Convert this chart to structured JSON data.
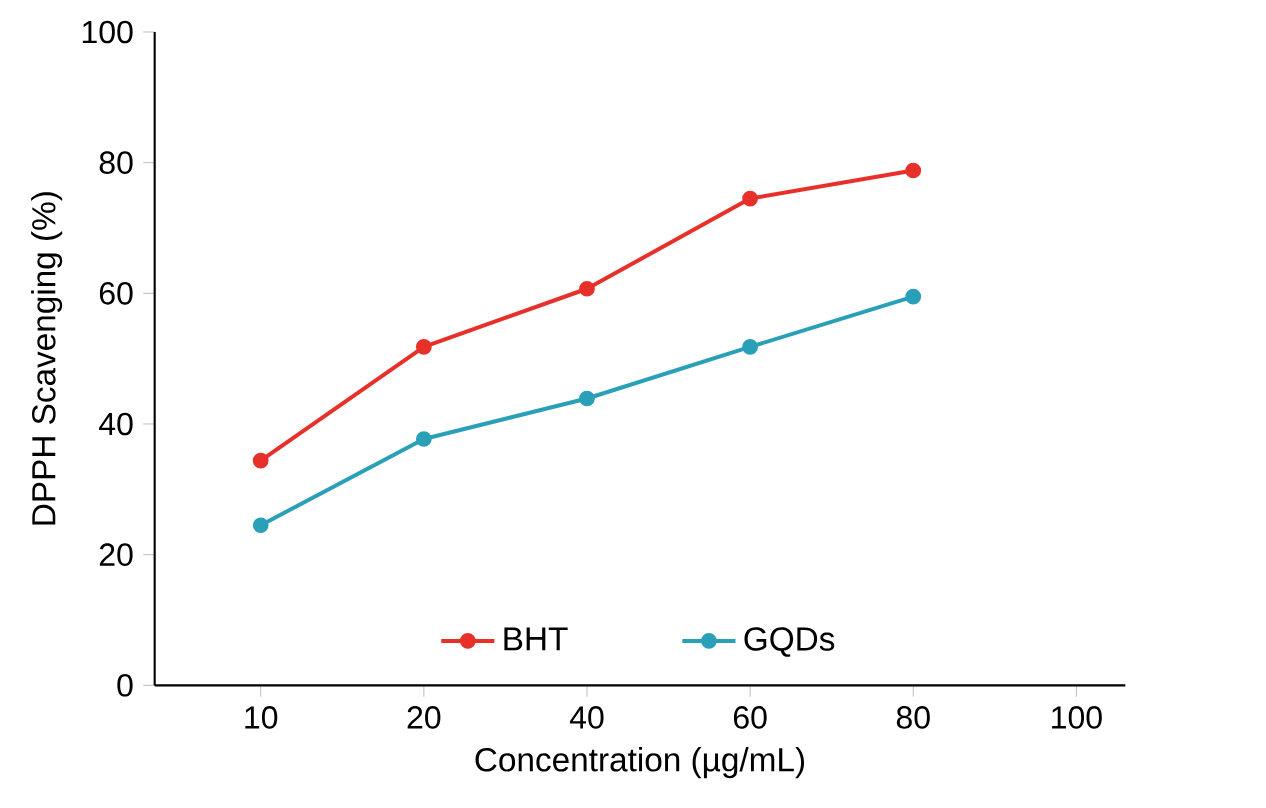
{
  "chart_data": {
    "type": "line",
    "xlabel": "Concentration (µg/mL)",
    "ylabel": "DPPH Scavenging (%)",
    "categories": [
      "10",
      "20",
      "40",
      "60",
      "80",
      "100"
    ],
    "series": [
      {
        "name": "BHT",
        "color": "#e8302a",
        "values": [
          34.4,
          51.8,
          60.7,
          74.5,
          78.8,
          null
        ]
      },
      {
        "name": "GQDs",
        "color": "#2a9fb8",
        "values": [
          24.5,
          37.7,
          43.9,
          51.8,
          59.5,
          null
        ]
      }
    ],
    "ylim": [
      0,
      100
    ],
    "yticks": [
      0,
      20,
      40,
      60,
      80,
      100
    ],
    "grid": false,
    "legend": "bottom",
    "marker": "circle",
    "line_style": "solid"
  }
}
